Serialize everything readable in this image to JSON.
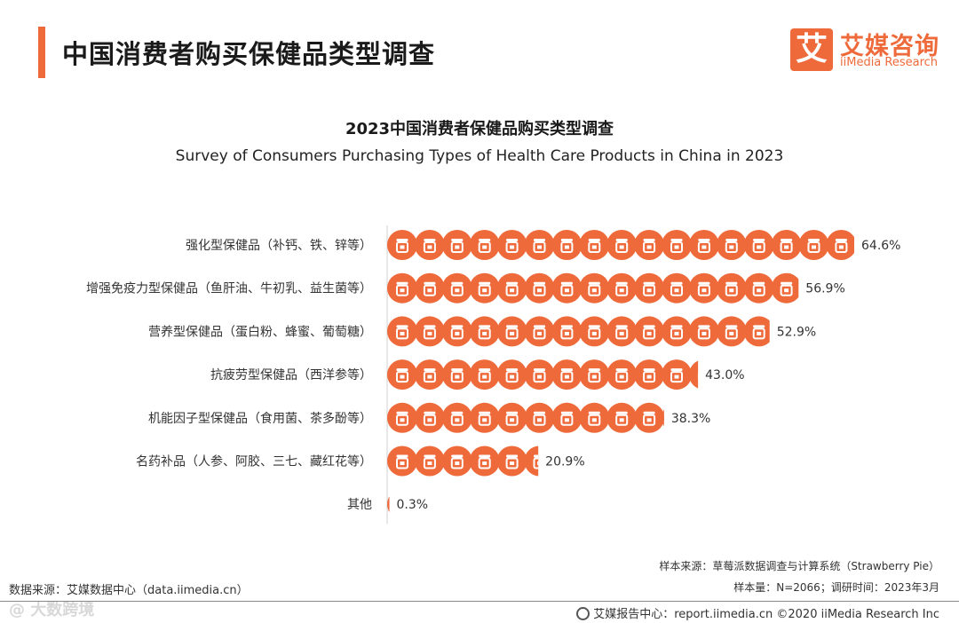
{
  "header": {
    "title": "中国消费者购买保健品类型调查",
    "logo_mark": "艾",
    "logo_cn": "艾媒咨询",
    "logo_en": "iiMedia Research"
  },
  "colors": {
    "accent": "#ef6a3a",
    "icon_fill": "#ef6a3a",
    "icon_glyph": "#ffffff"
  },
  "chart_data": {
    "type": "bar",
    "title": "2023中国消费者保健品购买类型调查",
    "subtitle": "Survey of Consumers Purchasing Types of Health Care Products in China in 2023",
    "orientation": "horizontal",
    "style": "pictograph",
    "categories": [
      "强化型保健品（补钙、铁、锌等）",
      "增强免疫力型保健品（鱼肝油、牛初乳、益生菌等）",
      "营养型保健品（蛋白粉、蜂蜜、葡萄糖）",
      "抗疲劳型保健品（西洋参等）",
      "机能因子型保健品（食用菌、茶多酚等）",
      "名药补品（人参、阿胶、三七、藏红花等）",
      "其他"
    ],
    "values": [
      64.6,
      56.9,
      52.9,
      43.0,
      38.3,
      20.9,
      0.3
    ],
    "value_labels": [
      "64.6%",
      "56.9%",
      "52.9%",
      "43.0%",
      "38.3%",
      "20.9%",
      "0.3%"
    ],
    "unit": "%",
    "xlim": [
      0,
      64.6
    ]
  },
  "source": {
    "sample_source": "样本来源：草莓派数据调查与计算系统（Strawberry Pie）",
    "sample_info": "样本量：N=2066；调研时间：2023年3月",
    "data_source": "数据来源：艾媒数据中心（data.iimedia.cn）"
  },
  "footer": {
    "text": "艾媒报告中心：report.iimedia.cn ©2020  iiMedia Research  Inc",
    "watermark": "@ 大数跨境"
  }
}
